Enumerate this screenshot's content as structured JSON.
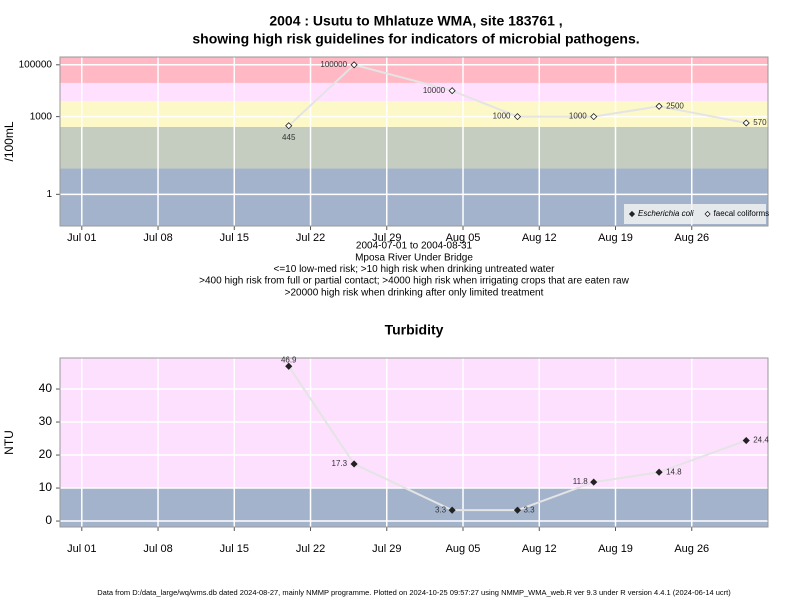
{
  "chart_data": [
    {
      "type": "line",
      "title": "2004 : Usutu to Mhlatuze WMA, site 183761 ,",
      "subtitle": "showing high risk guidelines for indicators of microbial pathogens.",
      "notes": [
        "2004-07-01 to 2004-08-31",
        "Mposa River Under Bridge",
        "<=10 low-med risk; >10 high risk when drinking untreated water",
        ">400 high risk from full or partial contact; >4000 high risk when irrigating crops that are eaten raw",
        ">20000 high risk when drinking after only limited treatment"
      ],
      "ylabel": "/100mL",
      "x": [
        "Jul 20",
        "Jul 26",
        "Aug 04",
        "Aug 10",
        "Aug 17",
        "Aug 23",
        "Aug 31"
      ],
      "xlim": [
        "Jun 29",
        "Sep 02"
      ],
      "xticks": [
        "Jul 01",
        "Jul 08",
        "Jul 15",
        "Jul 22",
        "Jul 29",
        "Aug 05",
        "Aug 12",
        "Aug 19",
        "Aug 26"
      ],
      "ylim": [
        0.06,
        200000
      ],
      "yticks": [
        1,
        1000,
        100000
      ],
      "log_y": true,
      "grid": true,
      "line_color": "#e4e4e4",
      "bands": [
        {
          "from": 0.06,
          "to": 10,
          "color": "#a3b3cb"
        },
        {
          "from": 10,
          "to": 400,
          "color": "#c4cdc0"
        },
        {
          "from": 400,
          "to": 4000,
          "color": "#fdf8c8"
        },
        {
          "from": 4000,
          "to": 20000,
          "color": "#ffe0ff"
        },
        {
          "from": 20000,
          "to": 200000,
          "color": "#ffb8c4"
        }
      ],
      "legend": "bottom-right",
      "series": [
        {
          "name": "Escherichia coli",
          "marker": "filled",
          "color": "#222222",
          "values": [
            null,
            null,
            null,
            null,
            null,
            null,
            null
          ]
        },
        {
          "name": "faecal coliforms",
          "marker": "open",
          "color": "#222222",
          "values": [
            445,
            100000,
            10000,
            1000,
            1000,
            2500,
            570
          ]
        }
      ]
    },
    {
      "type": "line",
      "title": "Turbidity",
      "ylabel": "NTU",
      "x": [
        "Jul 20",
        "Jul 26",
        "Aug 04",
        "Aug 10",
        "Aug 17",
        "Aug 23",
        "Aug 31"
      ],
      "xlim": [
        "Jun 29",
        "Sep 02"
      ],
      "xticks": [
        "Jul 01",
        "Jul 08",
        "Jul 15",
        "Jul 22",
        "Jul 29",
        "Aug 05",
        "Aug 12",
        "Aug 19",
        "Aug 26"
      ],
      "ylim": [
        -1.8,
        49.4
      ],
      "yticks": [
        0,
        10,
        20,
        30,
        40
      ],
      "log_y": false,
      "grid": true,
      "line_color": "#e4e4e4",
      "bands": [
        {
          "from": -1.8,
          "to": 10,
          "color": "#a3b3cb"
        },
        {
          "from": 10,
          "to": 49.4,
          "color": "#fde0fd"
        }
      ],
      "series": [
        {
          "name": "Turbidity",
          "marker": "filled",
          "color": "#222222",
          "values": [
            46.9,
            17.3,
            3.3,
            3.3,
            11.8,
            14.8,
            24.4
          ]
        }
      ]
    }
  ],
  "footer": "Data from D:/data_large/wq/wms.db dated 2024-08-27, mainly NMMP programme. Plotted on 2024-10-25 09:57:27 using NMMP_WMA_web.R ver 9.3 under R version 4.4.1 (2024-06-14 ucrt)"
}
